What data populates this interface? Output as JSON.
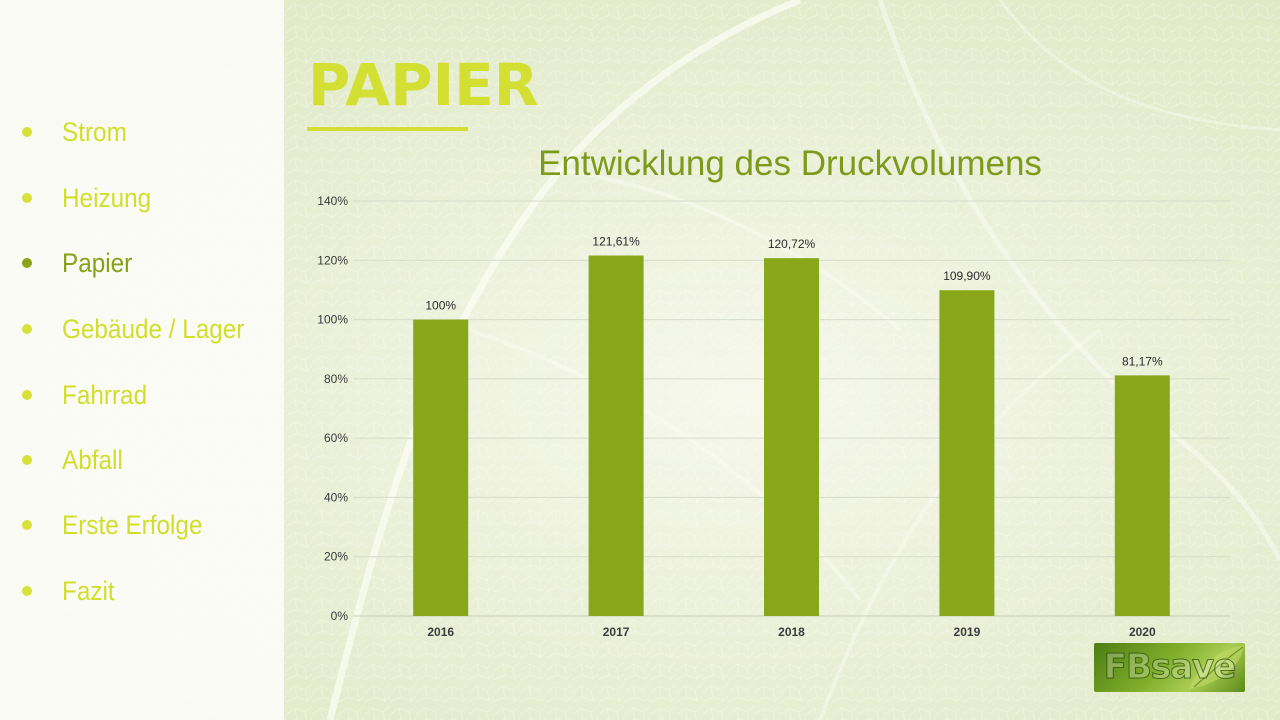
{
  "colors": {
    "accent_light": "#d3e033",
    "accent_dark": "#86a11a",
    "bar": "#8aa61a",
    "grid": "#d7dccb",
    "axis_text": "#3b3b3b"
  },
  "sidebar": {
    "items": [
      {
        "label": "Strom",
        "active": false
      },
      {
        "label": "Heizung",
        "active": false
      },
      {
        "label": "Papier",
        "active": true
      },
      {
        "label": "Gebäude / Lager",
        "active": false
      },
      {
        "label": "Fahrrad",
        "active": false
      },
      {
        "label": "Abfall",
        "active": false
      },
      {
        "label": "Erste Erfolge",
        "active": false
      },
      {
        "label": "Fazit",
        "active": false
      }
    ]
  },
  "page": {
    "title": "PAPIER"
  },
  "logo": {
    "text": "FBsave",
    "icon": "leaf-icon"
  },
  "chart_data": {
    "type": "bar",
    "title": "Entwicklung des Druckvolumens",
    "categories": [
      "2016",
      "2017",
      "2018",
      "2019",
      "2020"
    ],
    "values": [
      100,
      121.61,
      120.72,
      109.9,
      81.17
    ],
    "data_labels": [
      "100%",
      "121,61%",
      "120,72%",
      "109,90%",
      "81,17%"
    ],
    "ylim": [
      0,
      140
    ],
    "yticks": [
      0,
      20,
      40,
      60,
      80,
      100,
      120,
      140
    ],
    "ytick_labels": [
      "0%",
      "20%",
      "40%",
      "60%",
      "80%",
      "100%",
      "120%",
      "140%"
    ],
    "grid": true,
    "legend": "none"
  }
}
